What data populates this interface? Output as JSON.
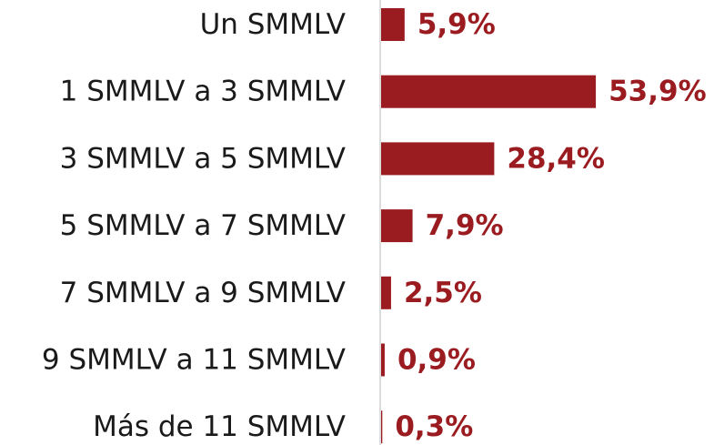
{
  "chart_data": {
    "type": "bar",
    "orientation": "horizontal",
    "categories": [
      "Un SMMLV",
      "1 SMMLV a 3 SMMLV",
      "3 SMMLV a 5 SMMLV",
      "5 SMMLV a 7 SMMLV",
      "7 SMMLV a 9 SMMLV",
      "9 SMMLV a 11 SMMLV",
      "Más de 11 SMMLV"
    ],
    "values": [
      5.9,
      53.9,
      28.4,
      7.9,
      2.5,
      0.9,
      0.3
    ],
    "value_labels": [
      "5,9%",
      "53,9%",
      "28,4%",
      "7,9%",
      "2,5%",
      "0,9%",
      "0,3%"
    ],
    "color": "#9b1c20"
  }
}
